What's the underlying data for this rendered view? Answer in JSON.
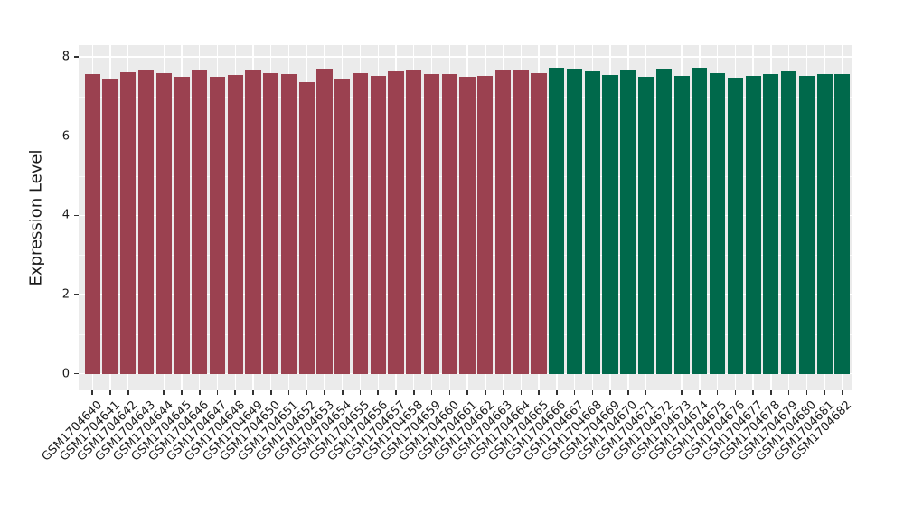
{
  "chart_data": {
    "type": "bar",
    "title": "",
    "xlabel": "",
    "ylabel": "Expression Level",
    "ylim": [
      0,
      8.35
    ],
    "yticks": [
      0,
      2,
      4,
      6,
      8
    ],
    "minor_yticks": [
      1,
      3,
      5,
      7
    ],
    "grid": true,
    "legend": false,
    "categories": [
      "GSM1704640",
      "GSM1704641",
      "GSM1704642",
      "GSM1704643",
      "GSM1704644",
      "GSM1704645",
      "GSM1704646",
      "GSM1704647",
      "GSM1704648",
      "GSM1704649",
      "GSM1704650",
      "GSM1704651",
      "GSM1704652",
      "GSM1704653",
      "GSM1704654",
      "GSM1704655",
      "GSM1704656",
      "GSM1704657",
      "GSM1704658",
      "GSM1704659",
      "GSM1704660",
      "GSM1704661",
      "GSM1704662",
      "GSM1704663",
      "GSM1704664",
      "GSM1704665",
      "GSM1704666",
      "GSM1704667",
      "GSM1704668",
      "GSM1704669",
      "GSM1704670",
      "GSM1704671",
      "GSM1704672",
      "GSM1704673",
      "GSM1704674",
      "GSM1704675",
      "GSM1704676",
      "GSM1704677",
      "GSM1704678",
      "GSM1704679",
      "GSM1704680",
      "GSM1704681",
      "GSM1704682"
    ],
    "values": [
      7.57,
      7.46,
      7.61,
      7.68,
      7.59,
      7.49,
      7.67,
      7.5,
      7.54,
      7.65,
      7.59,
      7.57,
      7.36,
      7.71,
      7.45,
      7.58,
      7.53,
      7.63,
      7.67,
      7.57,
      7.56,
      7.5,
      7.52,
      7.65,
      7.66,
      7.6,
      7.72,
      7.7,
      7.64,
      7.55,
      7.68,
      7.5,
      7.71,
      7.53,
      7.72,
      7.6,
      7.48,
      7.53,
      7.56,
      7.64,
      7.53,
      7.56,
      7.56
    ],
    "bar_color_groups": [
      {
        "color": "#9B4150",
        "from": "GSM1704640",
        "to": "GSM1704665"
      },
      {
        "color": "#00694B",
        "from": "GSM1704666",
        "to": "GSM1704682"
      }
    ],
    "colors": {
      "panel_background": "#EBEBEB",
      "gridline": "#FFFFFF",
      "axis_text": "#1A1A1A",
      "tick_mark": "#333333"
    }
  }
}
